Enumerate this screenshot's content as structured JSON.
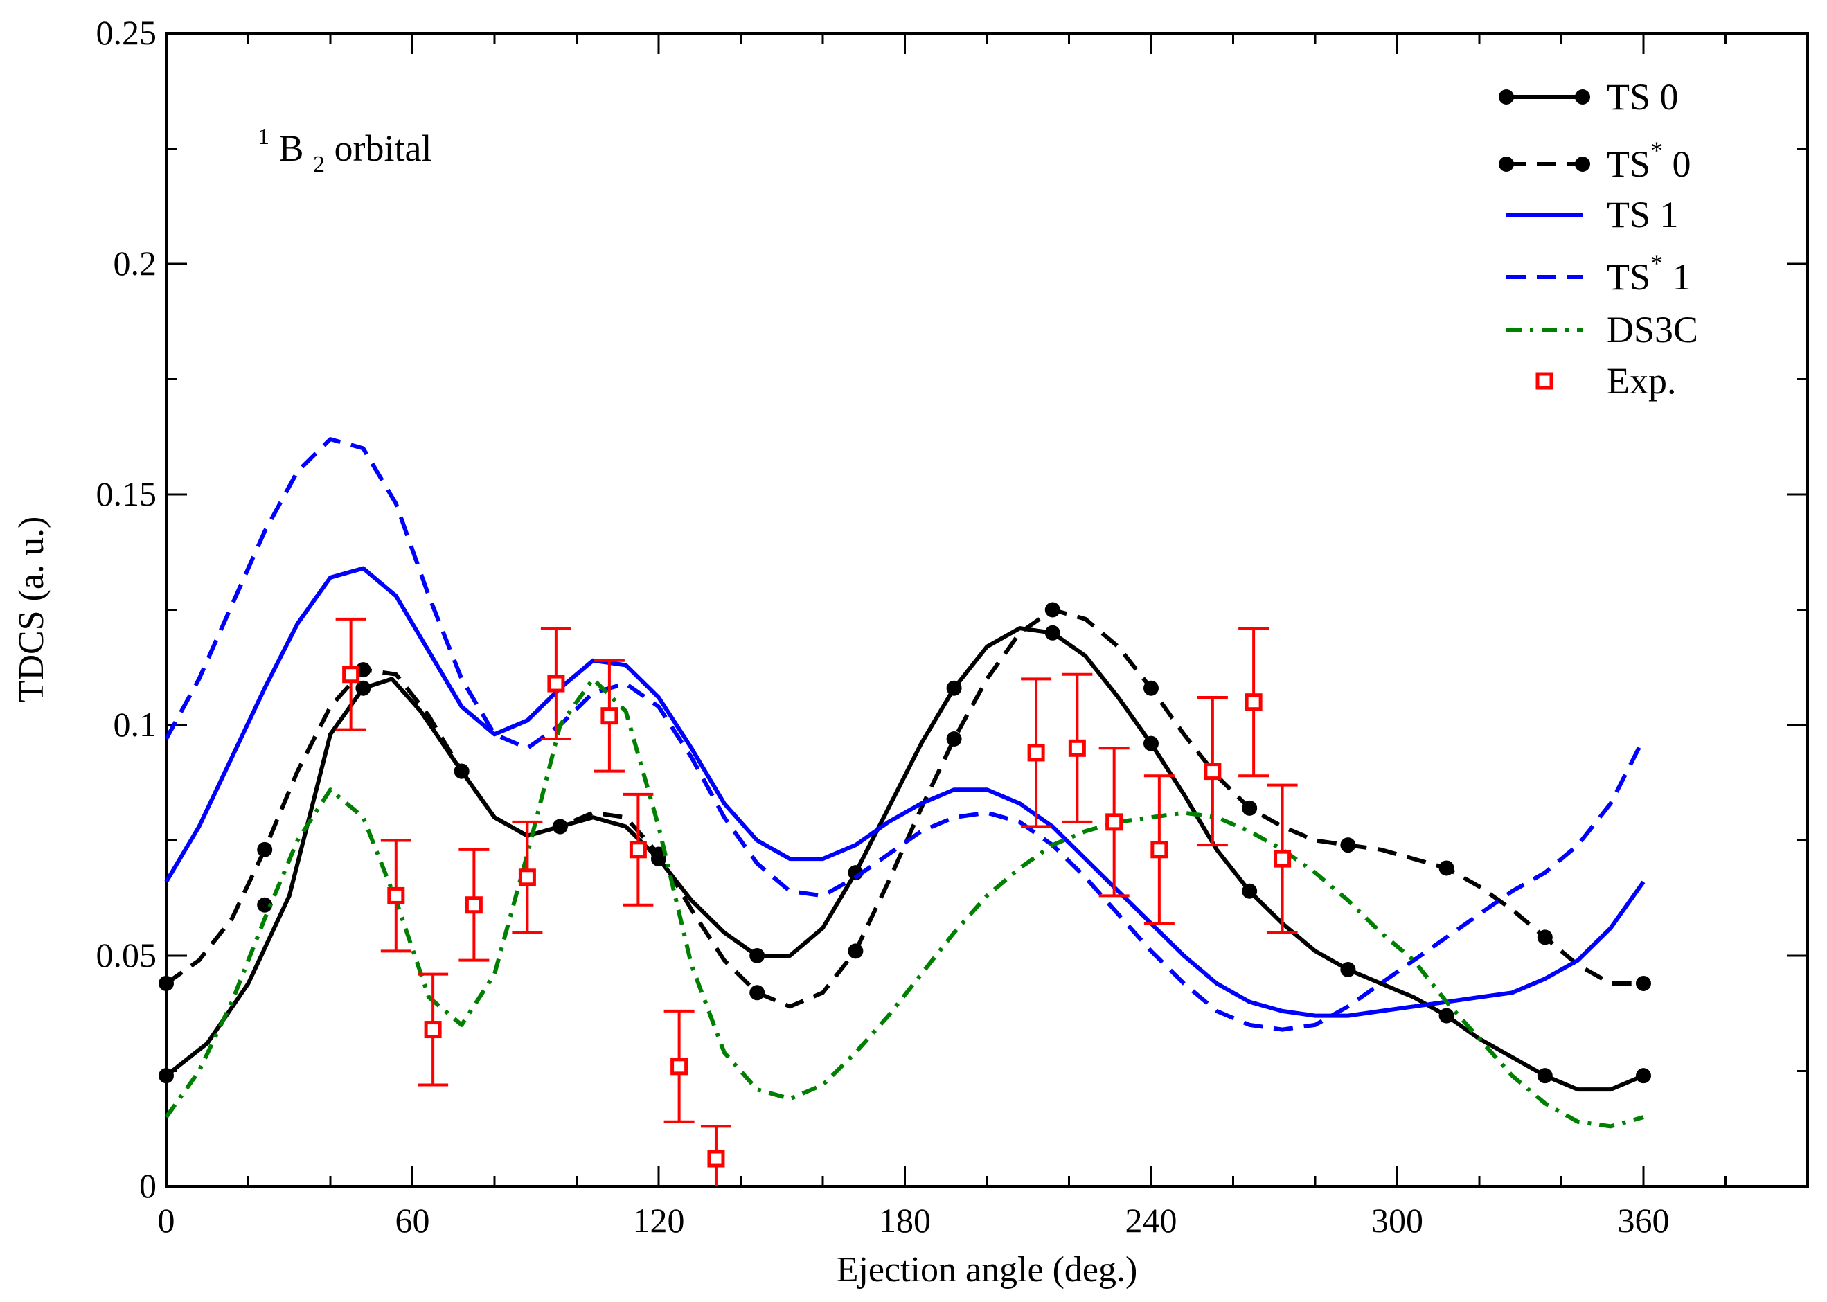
{
  "chart_data": {
    "type": "line",
    "title": "",
    "xlabel": "Ejection angle (deg.)",
    "ylabel": "TDCS (a. u.)",
    "xlim": [
      0,
      400
    ],
    "ylim": [
      0,
      0.25
    ],
    "xticks": [
      0,
      60,
      120,
      180,
      240,
      300,
      360
    ],
    "xtick_labels": [
      "0",
      "60",
      "120",
      "180",
      "240",
      "300",
      "360"
    ],
    "yticks": [
      0,
      0.05,
      0.1,
      0.15,
      0.2,
      0.25
    ],
    "ytick_labels": [
      "0",
      "0.05",
      "0.1",
      "0.15",
      "0.2",
      "0.25"
    ],
    "annotation": {
      "superscript": "1",
      "main": "B",
      "subscript": "2",
      "suffix": " orbital"
    },
    "legend_position": "top-right",
    "grid": false,
    "colors": {
      "black": "#000000",
      "blue": "#0000ff",
      "green": "#008000",
      "red": "#ff0000"
    },
    "series": [
      {
        "name": "TS 0",
        "label_main": "TS",
        "label_sup": "",
        "label_suffix": " 0",
        "style": "solid",
        "color": "#000000",
        "markers": true,
        "x": [
          0,
          10,
          20,
          30,
          40,
          48,
          55,
          62,
          72,
          80,
          88,
          96,
          104,
          112,
          120,
          128,
          136,
          144,
          152,
          160,
          168,
          176,
          184,
          192,
          200,
          208,
          216,
          224,
          232,
          240,
          248,
          256,
          264,
          272,
          280,
          288,
          296,
          304,
          312,
          320,
          328,
          336,
          344,
          352,
          360
        ],
        "y": [
          0.024,
          0.031,
          0.044,
          0.063,
          0.098,
          0.108,
          0.11,
          0.103,
          0.09,
          0.08,
          0.076,
          0.078,
          0.08,
          0.078,
          0.071,
          0.062,
          0.055,
          0.05,
          0.05,
          0.056,
          0.068,
          0.082,
          0.096,
          0.108,
          0.117,
          0.121,
          0.12,
          0.115,
          0.106,
          0.096,
          0.085,
          0.073,
          0.064,
          0.057,
          0.051,
          0.047,
          0.044,
          0.041,
          0.037,
          0.032,
          0.028,
          0.024,
          0.021,
          0.021,
          0.024
        ],
        "marker_x": [
          0,
          24,
          48,
          72,
          96,
          120,
          144,
          168,
          192,
          216,
          240,
          264,
          288,
          312,
          336,
          360
        ],
        "marker_y": [
          0.024,
          0.061,
          0.108,
          0.09,
          0.078,
          0.071,
          0.05,
          0.068,
          0.108,
          0.12,
          0.096,
          0.064,
          0.047,
          0.037,
          0.024,
          0.024
        ]
      },
      {
        "name": "TS* 0",
        "label_main": "TS",
        "label_sup": "*",
        "label_suffix": " 0",
        "style": "dashed",
        "color": "#000000",
        "markers": true,
        "x": [
          0,
          8,
          16,
          24,
          32,
          40,
          48,
          56,
          64,
          72,
          80,
          88,
          96,
          104,
          112,
          120,
          128,
          136,
          144,
          152,
          160,
          168,
          176,
          184,
          192,
          200,
          208,
          216,
          224,
          232,
          240,
          248,
          256,
          264,
          272,
          280,
          288,
          296,
          304,
          312,
          320,
          328,
          336,
          344,
          352,
          360
        ],
        "y": [
          0.044,
          0.049,
          0.058,
          0.073,
          0.09,
          0.104,
          0.112,
          0.111,
          0.102,
          0.09,
          0.08,
          0.076,
          0.078,
          0.081,
          0.08,
          0.072,
          0.06,
          0.049,
          0.042,
          0.039,
          0.042,
          0.051,
          0.066,
          0.082,
          0.097,
          0.11,
          0.12,
          0.125,
          0.123,
          0.117,
          0.108,
          0.098,
          0.089,
          0.082,
          0.078,
          0.075,
          0.074,
          0.073,
          0.071,
          0.069,
          0.065,
          0.06,
          0.054,
          0.048,
          0.044,
          0.044
        ],
        "marker_x": [
          0,
          24,
          48,
          72,
          96,
          120,
          144,
          168,
          192,
          216,
          240,
          264,
          288,
          312,
          336,
          360
        ],
        "marker_y": [
          0.044,
          0.073,
          0.112,
          0.09,
          0.078,
          0.072,
          0.042,
          0.051,
          0.097,
          0.125,
          0.108,
          0.082,
          0.074,
          0.069,
          0.054,
          0.044
        ]
      },
      {
        "name": "TS 1",
        "label_main": "TS",
        "label_sup": "",
        "label_suffix": " 1",
        "style": "solid",
        "color": "#0000ff",
        "markers": false,
        "x": [
          0,
          8,
          16,
          24,
          32,
          40,
          48,
          56,
          64,
          72,
          80,
          88,
          96,
          104,
          112,
          120,
          128,
          136,
          144,
          152,
          160,
          168,
          176,
          184,
          192,
          200,
          208,
          216,
          224,
          232,
          240,
          248,
          256,
          264,
          272,
          280,
          288,
          296,
          304,
          312,
          320,
          328,
          336,
          344,
          352,
          360
        ],
        "y": [
          0.066,
          0.078,
          0.093,
          0.108,
          0.122,
          0.132,
          0.134,
          0.128,
          0.116,
          0.104,
          0.098,
          0.101,
          0.108,
          0.114,
          0.113,
          0.106,
          0.095,
          0.083,
          0.075,
          0.071,
          0.071,
          0.074,
          0.079,
          0.083,
          0.086,
          0.086,
          0.083,
          0.078,
          0.071,
          0.064,
          0.057,
          0.05,
          0.044,
          0.04,
          0.038,
          0.037,
          0.037,
          0.038,
          0.039,
          0.04,
          0.041,
          0.042,
          0.045,
          0.049,
          0.056,
          0.066
        ]
      },
      {
        "name": "TS* 1",
        "label_main": "TS",
        "label_sup": "*",
        "label_suffix": " 1",
        "style": "dashed",
        "color": "#0000ff",
        "markers": false,
        "x": [
          0,
          8,
          16,
          24,
          32,
          40,
          48,
          56,
          64,
          72,
          80,
          88,
          96,
          104,
          112,
          120,
          128,
          136,
          144,
          152,
          160,
          168,
          176,
          184,
          192,
          200,
          208,
          216,
          224,
          232,
          240,
          248,
          256,
          264,
          272,
          280,
          288,
          296,
          304,
          312,
          320,
          328,
          336,
          344,
          352,
          360
        ],
        "y": [
          0.097,
          0.11,
          0.126,
          0.142,
          0.155,
          0.162,
          0.16,
          0.148,
          0.128,
          0.11,
          0.098,
          0.095,
          0.1,
          0.107,
          0.109,
          0.104,
          0.093,
          0.08,
          0.07,
          0.064,
          0.063,
          0.067,
          0.072,
          0.077,
          0.08,
          0.081,
          0.079,
          0.074,
          0.067,
          0.059,
          0.051,
          0.044,
          0.038,
          0.035,
          0.034,
          0.035,
          0.039,
          0.044,
          0.049,
          0.054,
          0.059,
          0.064,
          0.068,
          0.074,
          0.083,
          0.097
        ]
      },
      {
        "name": "DS3C",
        "label_main": "DS3C",
        "label_sup": "",
        "label_suffix": "",
        "style": "dashdot",
        "color": "#008000",
        "markers": false,
        "x": [
          0,
          8,
          16,
          24,
          32,
          40,
          48,
          56,
          64,
          72,
          80,
          88,
          96,
          104,
          112,
          120,
          128,
          136,
          144,
          152,
          160,
          168,
          176,
          184,
          192,
          200,
          208,
          216,
          224,
          232,
          240,
          248,
          256,
          264,
          272,
          280,
          288,
          296,
          304,
          312,
          320,
          328,
          336,
          344,
          352,
          360
        ],
        "y": [
          0.015,
          0.025,
          0.04,
          0.058,
          0.075,
          0.086,
          0.08,
          0.062,
          0.041,
          0.035,
          0.046,
          0.072,
          0.1,
          0.11,
          0.103,
          0.078,
          0.048,
          0.029,
          0.021,
          0.019,
          0.022,
          0.029,
          0.037,
          0.046,
          0.055,
          0.063,
          0.069,
          0.074,
          0.077,
          0.079,
          0.08,
          0.081,
          0.08,
          0.077,
          0.073,
          0.068,
          0.062,
          0.055,
          0.049,
          0.04,
          0.032,
          0.024,
          0.018,
          0.014,
          0.013,
          0.015
        ]
      }
    ],
    "experiment": {
      "name": "Exp.",
      "color": "#ff0000",
      "x": [
        45,
        56,
        65,
        75,
        88,
        95,
        108,
        115,
        125,
        134,
        212,
        222,
        231,
        242,
        255,
        265,
        272
      ],
      "y": [
        0.111,
        0.063,
        0.034,
        0.061,
        0.067,
        0.109,
        0.102,
        0.073,
        0.026,
        0.006,
        0.094,
        0.095,
        0.079,
        0.073,
        0.09,
        0.105,
        0.071
      ],
      "err": [
        0.012,
        0.012,
        0.012,
        0.012,
        0.012,
        0.012,
        0.012,
        0.012,
        0.012,
        0.007,
        0.016,
        0.016,
        0.016,
        0.016,
        0.016,
        0.016,
        0.016
      ]
    }
  }
}
